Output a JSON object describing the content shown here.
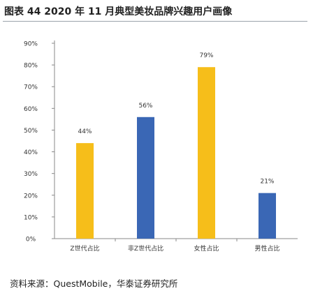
{
  "title": "图表 44 2020 年 11 月典型美妆品牌兴趣用户画像",
  "source": "资料来源：QuestMobile，华泰证券研究所",
  "colors": {
    "yellow": "#F6BE1A",
    "blue": "#3A67B5",
    "axis": "#888888"
  },
  "chart_data": {
    "type": "bar",
    "title": "图表 44 2020 年 11 月典型美妆品牌兴趣用户画像",
    "categories": [
      "Z世代占比",
      "非Z世代占比",
      "女性占比",
      "男性占比"
    ],
    "values": [
      44,
      56,
      79,
      21
    ],
    "value_labels": [
      "44%",
      "56%",
      "79%",
      "21%"
    ],
    "bar_colors": [
      "yellow",
      "blue",
      "yellow",
      "blue"
    ],
    "ylim": [
      0,
      90
    ],
    "yticks": [
      0,
      10,
      20,
      30,
      40,
      50,
      60,
      70,
      80,
      90
    ],
    "ytick_labels": [
      "0%",
      "10%",
      "20%",
      "30%",
      "40%",
      "50%",
      "60%",
      "70%",
      "80%",
      "90%"
    ],
    "xlabel": "",
    "ylabel": "",
    "grid": false,
    "legend": "none"
  }
}
